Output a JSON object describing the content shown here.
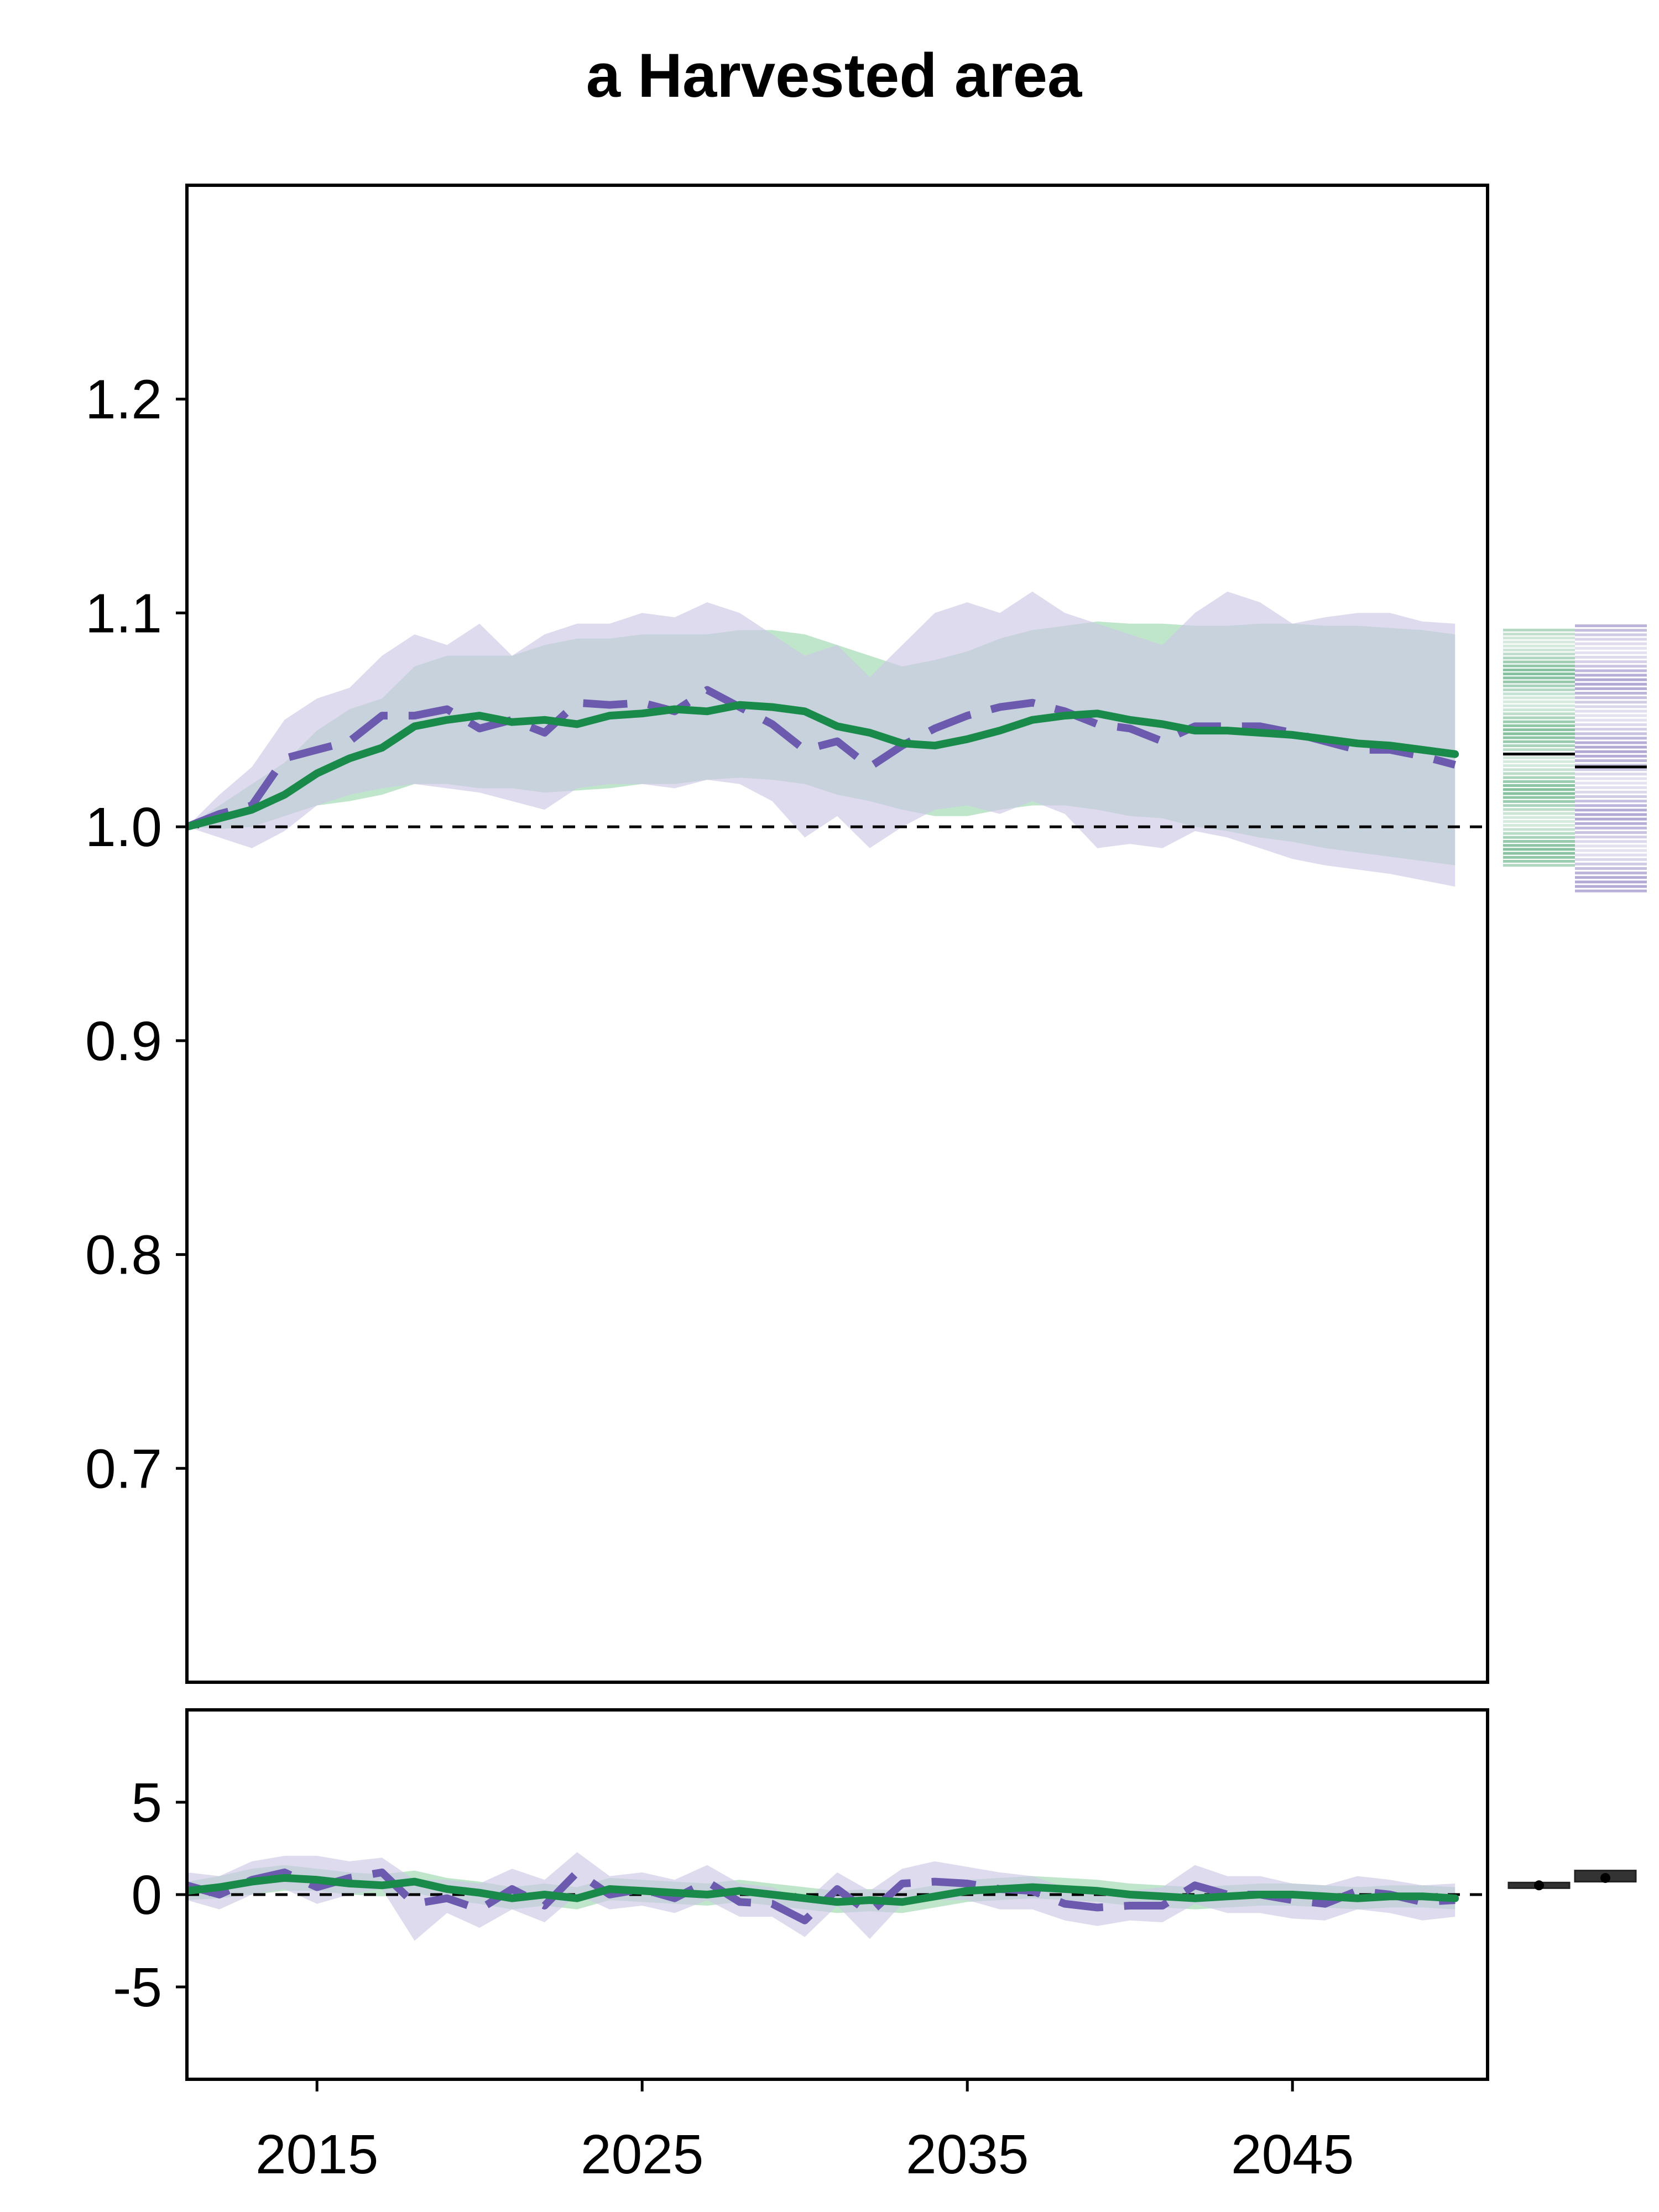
{
  "chart_data": {
    "type": "line",
    "title": "a Harvested area",
    "xlabel": "",
    "ylabel": "",
    "x": [
      2011,
      2012,
      2013,
      2014,
      2015,
      2016,
      2017,
      2018,
      2019,
      2020,
      2021,
      2022,
      2023,
      2024,
      2025,
      2026,
      2027,
      2028,
      2029,
      2030,
      2031,
      2032,
      2033,
      2034,
      2035,
      2036,
      2037,
      2038,
      2039,
      2040,
      2041,
      2042,
      2043,
      2044,
      2045,
      2046,
      2047,
      2048,
      2049,
      2050
    ],
    "x_ticks": [
      "2015",
      "2025",
      "2035",
      "2045"
    ],
    "x_tick_values": [
      2015,
      2025,
      2035,
      2045
    ],
    "xlim": [
      2011,
      2051
    ],
    "colors": {
      "green": "#1a8a4a",
      "purple": "#6b5aad",
      "green_band": "#a9dcba",
      "purple_band": "#cdc8e6"
    },
    "panels": [
      {
        "name": "upper",
        "ylim": [
          0.6,
          1.3
        ],
        "y_ticks": [
          "0.7",
          "0.8",
          "0.9",
          "1.0",
          "1.1",
          "1.2"
        ],
        "y_tick_values": [
          0.7,
          0.8,
          0.9,
          1.0,
          1.1,
          1.2
        ],
        "reference_line": 1.0,
        "series": [
          {
            "color": "#1a8a4a",
            "style": "solid",
            "values": [
              1.0,
              1.004,
              1.008,
              1.015,
              1.025,
              1.032,
              1.037,
              1.047,
              1.05,
              1.052,
              1.049,
              1.05,
              1.048,
              1.052,
              1.053,
              1.055,
              1.054,
              1.057,
              1.056,
              1.054,
              1.047,
              1.044,
              1.039,
              1.038,
              1.041,
              1.045,
              1.05,
              1.052,
              1.053,
              1.05,
              1.048,
              1.045,
              1.045,
              1.044,
              1.043,
              1.041,
              1.039,
              1.038,
              1.036,
              1.034
            ],
            "band_low": [
              1.0,
              0.999,
              1.0,
              1.005,
              1.01,
              1.012,
              1.015,
              1.02,
              1.02,
              1.018,
              1.018,
              1.016,
              1.017,
              1.018,
              1.02,
              1.02,
              1.022,
              1.023,
              1.022,
              1.02,
              1.015,
              1.012,
              1.008,
              1.005,
              1.005,
              1.008,
              1.01,
              1.01,
              1.008,
              1.005,
              1.004,
              1.0,
              0.998,
              0.995,
              0.993,
              0.99,
              0.988,
              0.986,
              0.984,
              0.982
            ],
            "band_high": [
              1.0,
              1.01,
              1.02,
              1.03,
              1.045,
              1.055,
              1.06,
              1.075,
              1.08,
              1.08,
              1.08,
              1.085,
              1.088,
              1.088,
              1.09,
              1.09,
              1.09,
              1.092,
              1.092,
              1.09,
              1.085,
              1.08,
              1.075,
              1.078,
              1.082,
              1.088,
              1.092,
              1.094,
              1.096,
              1.095,
              1.095,
              1.094,
              1.094,
              1.095,
              1.095,
              1.094,
              1.094,
              1.093,
              1.092,
              1.09
            ]
          },
          {
            "color": "#6b5aad",
            "style": "dashed",
            "values": [
              1.0,
              1.006,
              1.01,
              1.032,
              1.036,
              1.04,
              1.052,
              1.052,
              1.055,
              1.046,
              1.05,
              1.044,
              1.058,
              1.057,
              1.058,
              1.054,
              1.064,
              1.056,
              1.048,
              1.036,
              1.04,
              1.028,
              1.038,
              1.046,
              1.052,
              1.056,
              1.058,
              1.054,
              1.048,
              1.046,
              1.04,
              1.047,
              1.047,
              1.047,
              1.044,
              1.04,
              1.036,
              1.036,
              1.033,
              1.029
            ],
            "band_low": [
              1.0,
              0.995,
              0.99,
              0.998,
              1.01,
              1.015,
              1.018,
              1.02,
              1.018,
              1.016,
              1.012,
              1.008,
              1.018,
              1.02,
              1.02,
              1.018,
              1.022,
              1.02,
              1.012,
              0.995,
              1.005,
              0.99,
              1.0,
              1.008,
              1.01,
              1.006,
              1.012,
              1.006,
              0.99,
              0.992,
              0.99,
              0.998,
              0.995,
              0.99,
              0.985,
              0.982,
              0.98,
              0.978,
              0.975,
              0.972
            ],
            "band_high": [
              1.0,
              1.015,
              1.028,
              1.05,
              1.06,
              1.065,
              1.08,
              1.09,
              1.085,
              1.095,
              1.08,
              1.09,
              1.095,
              1.095,
              1.1,
              1.098,
              1.105,
              1.1,
              1.09,
              1.08,
              1.085,
              1.07,
              1.085,
              1.1,
              1.105,
              1.1,
              1.11,
              1.1,
              1.095,
              1.09,
              1.085,
              1.1,
              1.11,
              1.105,
              1.095,
              1.098,
              1.1,
              1.1,
              1.096,
              1.095
            ]
          }
        ],
        "distribution_strips": [
          {
            "color": "#1a8a4a",
            "median": 1.034,
            "low": 0.982,
            "high": 1.092
          },
          {
            "color": "#6b5aad",
            "median": 1.028,
            "low": 0.97,
            "high": 1.094
          }
        ]
      },
      {
        "name": "lower",
        "ylim": [
          -10,
          10
        ],
        "y_ticks": [
          "-5",
          "0",
          "5"
        ],
        "y_tick_values": [
          -5,
          0,
          5
        ],
        "reference_line": 0,
        "series": [
          {
            "color": "#1a8a4a",
            "style": "solid",
            "values": [
              0.2,
              0.4,
              0.7,
              0.9,
              0.8,
              0.6,
              0.5,
              0.7,
              0.3,
              0.1,
              -0.2,
              0.0,
              -0.2,
              0.3,
              0.2,
              0.1,
              0.0,
              0.2,
              0.0,
              -0.2,
              -0.4,
              -0.3,
              -0.4,
              -0.1,
              0.2,
              0.3,
              0.4,
              0.3,
              0.2,
              0.0,
              -0.1,
              -0.2,
              -0.1,
              0.0,
              0.0,
              -0.1,
              -0.2,
              -0.1,
              -0.1,
              -0.2
            ],
            "band_low": [
              -0.3,
              -0.2,
              0.0,
              0.2,
              0.2,
              0.0,
              -0.1,
              0.1,
              -0.3,
              -0.5,
              -0.8,
              -0.6,
              -0.8,
              -0.3,
              -0.4,
              -0.5,
              -0.6,
              -0.4,
              -0.6,
              -0.8,
              -1.0,
              -0.9,
              -1.0,
              -0.7,
              -0.4,
              -0.3,
              -0.2,
              -0.3,
              -0.4,
              -0.6,
              -0.7,
              -0.8,
              -0.7,
              -0.6,
              -0.6,
              -0.7,
              -0.8,
              -0.7,
              -0.7,
              -0.8
            ],
            "band_high": [
              0.7,
              1.0,
              1.4,
              1.6,
              1.4,
              1.2,
              1.1,
              1.3,
              0.9,
              0.7,
              0.4,
              0.6,
              0.4,
              0.9,
              0.8,
              0.7,
              0.6,
              0.8,
              0.6,
              0.4,
              0.2,
              0.3,
              0.2,
              0.5,
              0.8,
              0.9,
              1.0,
              0.9,
              0.8,
              0.6,
              0.5,
              0.4,
              0.5,
              0.6,
              0.6,
              0.5,
              0.4,
              0.5,
              0.5,
              0.4
            ]
          },
          {
            "color": "#6b5aad",
            "style": "dashed",
            "values": [
              0.5,
              0.0,
              0.8,
              1.2,
              0.4,
              0.9,
              1.2,
              -0.5,
              -0.2,
              -0.8,
              0.3,
              -0.6,
              1.2,
              0.0,
              0.3,
              -0.2,
              0.7,
              -0.4,
              -0.5,
              -1.4,
              0.3,
              -1.0,
              0.6,
              0.7,
              0.6,
              0.3,
              0.2,
              -0.5,
              -0.7,
              -0.6,
              -0.6,
              0.5,
              0.0,
              0.0,
              -0.3,
              -0.5,
              0.2,
              0.0,
              -0.4,
              -0.3
            ],
            "band_low": [
              -0.3,
              -0.8,
              0.0,
              0.3,
              -0.5,
              0.0,
              0.3,
              -2.5,
              -1.0,
              -1.8,
              -0.8,
              -1.5,
              0.0,
              -0.8,
              -0.6,
              -1.0,
              -0.3,
              -1.2,
              -1.2,
              -2.3,
              -0.6,
              -2.4,
              -0.5,
              -0.3,
              -0.3,
              -0.8,
              -0.8,
              -1.4,
              -1.7,
              -1.4,
              -1.5,
              -0.5,
              -1.0,
              -1.0,
              -1.3,
              -1.4,
              -0.8,
              -1.0,
              -1.4,
              -1.2
            ],
            "band_high": [
              1.2,
              1.0,
              1.8,
              2.1,
              2.1,
              1.8,
              2.0,
              0.8,
              0.8,
              0.6,
              1.4,
              0.8,
              2.3,
              1.0,
              1.2,
              0.8,
              1.6,
              0.6,
              0.4,
              -0.4,
              1.2,
              0.2,
              1.4,
              1.8,
              1.5,
              1.2,
              1.0,
              0.4,
              0.3,
              0.2,
              0.4,
              1.6,
              1.0,
              1.0,
              0.6,
              0.5,
              1.0,
              0.8,
              0.5,
              0.6
            ]
          }
        ],
        "boxes": [
          {
            "color": "#333333",
            "median": 0.5,
            "q1": 0.35,
            "q3": 0.65
          },
          {
            "color": "#333333",
            "median": 0.9,
            "q1": 0.7,
            "q3": 1.3
          }
        ]
      }
    ]
  }
}
